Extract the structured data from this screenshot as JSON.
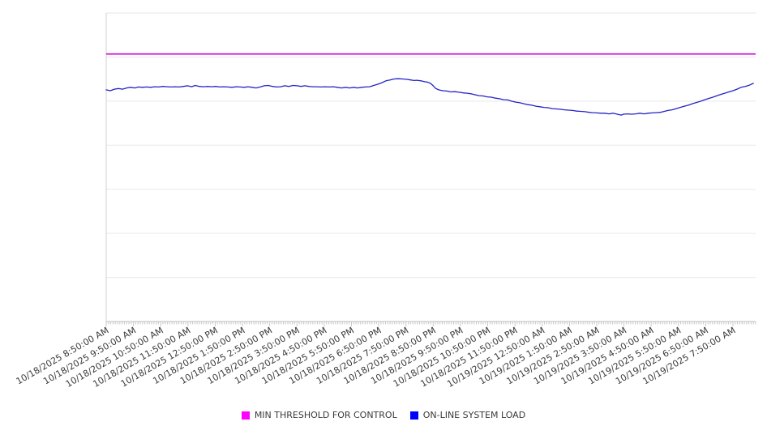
{
  "legend": {
    "items": [
      {
        "label": "MIN THRESHOLD FOR CONTROL",
        "color": "#ff00ff"
      },
      {
        "label": "ON-LINE SYSTEM LOAD",
        "color": "#0000ff"
      }
    ]
  },
  "chart_data": {
    "type": "line",
    "title": "",
    "xlabel": "",
    "ylabel": "",
    "x_axis": {
      "tick_labels": [
        "10/18/2025 8:50:00 AM",
        "10/18/2025 9:50:00 AM",
        "10/18/2025 10:50:00 AM",
        "10/18/2025 11:50:00 AM",
        "10/18/2025 12:50:00 PM",
        "10/18/2025 1:50:00 PM",
        "10/18/2025 2:50:00 PM",
        "10/18/2025 3:50:00 PM",
        "10/18/2025 4:50:00 PM",
        "10/18/2025 5:50:00 PM",
        "10/18/2025 6:50:00 PM",
        "10/18/2025 7:50:00 PM",
        "10/18/2025 8:50:00 PM",
        "10/18/2025 9:50:00 PM",
        "10/18/2025 10:50:00 PM",
        "10/18/2025 11:50:00 PM",
        "10/19/2025 12:50:00 AM",
        "10/19/2025 1:50:00 AM",
        "10/19/2025 2:50:00 AM",
        "10/19/2025 3:50:00 AM",
        "10/19/2025 4:50:00 AM",
        "10/19/2025 5:50:00 AM",
        "10/19/2025 6:50:00 AM",
        "10/19/2025 7:50:00 AM"
      ],
      "label_interval": "1 hour",
      "label_rotation_deg": -30,
      "minor_tick_interval_min": 5,
      "range_min": [
        0,
        1430
      ]
    },
    "y_axis": {
      "tick_labels": [],
      "note": "no numeric y labels shown in chart; series values expressed as percent of plot height",
      "range_pct": [
        0,
        100
      ],
      "gridline_divisions": 7,
      "grid_on": true
    },
    "legend_position": "bottom-center",
    "series": [
      {
        "name": "MIN THRESHOLD FOR CONTROL",
        "type": "threshold-line",
        "legend_color": "#ff00ff",
        "line_color": "#cc00cc",
        "value_pct": 86.7
      },
      {
        "name": "ON-LINE SYSTEM LOAD",
        "type": "line",
        "legend_color": "#0000ff",
        "line_color": "#2323c8",
        "points_min_pct": [
          [
            0,
            75.1
          ],
          [
            9,
            74.8
          ],
          [
            18,
            75.3
          ],
          [
            27,
            75.5
          ],
          [
            36,
            75.3
          ],
          [
            45,
            75.7
          ],
          [
            54,
            75.9
          ],
          [
            63,
            75.7
          ],
          [
            71,
            76.0
          ],
          [
            80,
            75.9
          ],
          [
            89,
            76.0
          ],
          [
            98,
            75.9
          ],
          [
            107,
            76.1
          ],
          [
            116,
            76.0
          ],
          [
            125,
            76.2
          ],
          [
            134,
            76.1
          ],
          [
            143,
            76.0
          ],
          [
            152,
            76.1
          ],
          [
            161,
            76.0
          ],
          [
            170,
            76.2
          ],
          [
            179,
            76.4
          ],
          [
            188,
            76.1
          ],
          [
            196,
            76.5
          ],
          [
            205,
            76.2
          ],
          [
            214,
            76.1
          ],
          [
            223,
            76.2
          ],
          [
            232,
            76.1
          ],
          [
            241,
            76.2
          ],
          [
            250,
            76.0
          ],
          [
            259,
            76.1
          ],
          [
            268,
            76.0
          ],
          [
            277,
            75.9
          ],
          [
            286,
            76.1
          ],
          [
            295,
            76.0
          ],
          [
            304,
            75.9
          ],
          [
            312,
            76.1
          ],
          [
            321,
            75.9
          ],
          [
            330,
            75.7
          ],
          [
            339,
            76.0
          ],
          [
            348,
            76.4
          ],
          [
            357,
            76.5
          ],
          [
            366,
            76.2
          ],
          [
            375,
            76.0
          ],
          [
            384,
            76.1
          ],
          [
            393,
            76.4
          ],
          [
            402,
            76.2
          ],
          [
            411,
            76.5
          ],
          [
            420,
            76.4
          ],
          [
            429,
            76.2
          ],
          [
            437,
            76.4
          ],
          [
            446,
            76.2
          ],
          [
            455,
            76.1
          ],
          [
            464,
            76.1
          ],
          [
            473,
            76.0
          ],
          [
            482,
            76.1
          ],
          [
            491,
            76.0
          ],
          [
            500,
            76.1
          ],
          [
            509,
            75.9
          ],
          [
            518,
            75.7
          ],
          [
            527,
            75.9
          ],
          [
            536,
            75.7
          ],
          [
            545,
            75.9
          ],
          [
            553,
            75.7
          ],
          [
            562,
            75.9
          ],
          [
            571,
            76.0
          ],
          [
            580,
            76.1
          ],
          [
            589,
            76.5
          ],
          [
            598,
            76.9
          ],
          [
            607,
            77.4
          ],
          [
            616,
            78.0
          ],
          [
            625,
            78.3
          ],
          [
            634,
            78.6
          ],
          [
            643,
            78.7
          ],
          [
            652,
            78.6
          ],
          [
            661,
            78.5
          ],
          [
            670,
            78.3
          ],
          [
            678,
            78.1
          ],
          [
            684,
            78.2
          ],
          [
            693,
            78.0
          ],
          [
            702,
            77.7
          ],
          [
            707,
            77.6
          ],
          [
            714,
            77.2
          ],
          [
            720,
            76.4
          ],
          [
            725,
            75.6
          ],
          [
            732,
            75.1
          ],
          [
            741,
            74.8
          ],
          [
            750,
            74.7
          ],
          [
            759,
            74.4
          ],
          [
            768,
            74.5
          ],
          [
            777,
            74.3
          ],
          [
            786,
            74.1
          ],
          [
            795,
            74.0
          ],
          [
            803,
            73.8
          ],
          [
            812,
            73.5
          ],
          [
            821,
            73.2
          ],
          [
            830,
            73.1
          ],
          [
            839,
            72.8
          ],
          [
            848,
            72.7
          ],
          [
            857,
            72.4
          ],
          [
            866,
            72.2
          ],
          [
            875,
            71.9
          ],
          [
            884,
            71.8
          ],
          [
            893,
            71.4
          ],
          [
            902,
            71.1
          ],
          [
            911,
            70.9
          ],
          [
            919,
            70.6
          ],
          [
            928,
            70.3
          ],
          [
            937,
            70.1
          ],
          [
            946,
            69.8
          ],
          [
            955,
            69.6
          ],
          [
            964,
            69.4
          ],
          [
            973,
            69.3
          ],
          [
            982,
            69.0
          ],
          [
            991,
            68.9
          ],
          [
            1000,
            68.8
          ],
          [
            1009,
            68.6
          ],
          [
            1018,
            68.5
          ],
          [
            1027,
            68.4
          ],
          [
            1036,
            68.2
          ],
          [
            1045,
            68.1
          ],
          [
            1054,
            68.0
          ],
          [
            1063,
            67.8
          ],
          [
            1071,
            67.7
          ],
          [
            1080,
            67.6
          ],
          [
            1089,
            67.5
          ],
          [
            1098,
            67.5
          ],
          [
            1107,
            67.3
          ],
          [
            1116,
            67.5
          ],
          [
            1125,
            67.2
          ],
          [
            1134,
            66.9
          ],
          [
            1139,
            67.2
          ],
          [
            1148,
            67.3
          ],
          [
            1157,
            67.2
          ],
          [
            1166,
            67.3
          ],
          [
            1175,
            67.5
          ],
          [
            1184,
            67.3
          ],
          [
            1193,
            67.5
          ],
          [
            1202,
            67.6
          ],
          [
            1211,
            67.7
          ],
          [
            1220,
            67.8
          ],
          [
            1229,
            68.1
          ],
          [
            1237,
            68.4
          ],
          [
            1246,
            68.6
          ],
          [
            1255,
            69.0
          ],
          [
            1264,
            69.4
          ],
          [
            1273,
            69.8
          ],
          [
            1282,
            70.1
          ],
          [
            1291,
            70.6
          ],
          [
            1300,
            71.0
          ],
          [
            1309,
            71.4
          ],
          [
            1318,
            71.9
          ],
          [
            1327,
            72.3
          ],
          [
            1336,
            72.7
          ],
          [
            1345,
            73.2
          ],
          [
            1353,
            73.6
          ],
          [
            1362,
            74.0
          ],
          [
            1371,
            74.4
          ],
          [
            1380,
            74.8
          ],
          [
            1389,
            75.3
          ],
          [
            1398,
            75.9
          ],
          [
            1407,
            76.2
          ],
          [
            1416,
            76.6
          ],
          [
            1425,
            77.2
          ]
        ]
      }
    ],
    "colors": {
      "gridline": "#e9e9e9",
      "top_border": "#e5e5e5",
      "left_border": "#d0d0d0",
      "axis_line": "#bdbdbd",
      "tick": "#c9c9c9",
      "label_text": "#3b3b3b"
    }
  }
}
